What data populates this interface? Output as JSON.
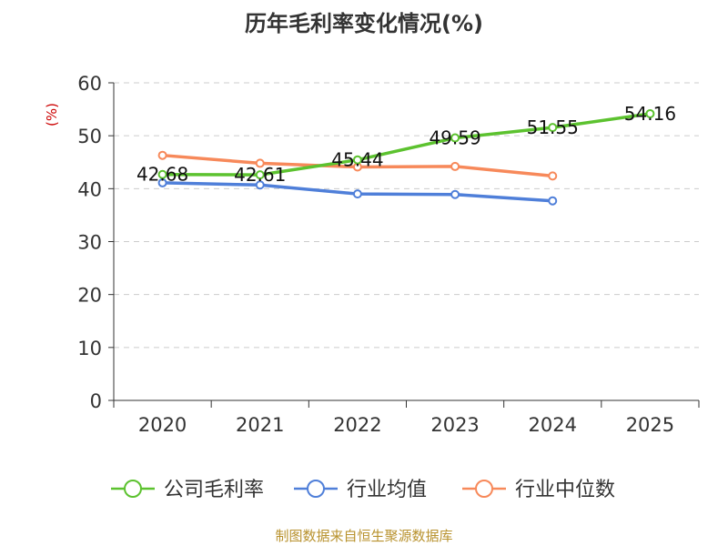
{
  "chart_data": {
    "type": "line",
    "title": "历年毛利率变化情况(%)",
    "ylabel": "(%)",
    "xlabel": "",
    "categories": [
      "2020",
      "2021",
      "2022",
      "2023",
      "2024",
      "2025"
    ],
    "ylim": [
      0,
      60
    ],
    "yticks": [
      0,
      10,
      20,
      30,
      40,
      50,
      60
    ],
    "grid": true,
    "legend_position": "bottom",
    "series": [
      {
        "name": "公司毛利率",
        "color": "#5cc22f",
        "values": [
          42.68,
          42.61,
          45.44,
          49.59,
          51.55,
          54.16
        ],
        "labels": [
          "42.68",
          "42.61",
          "45.44",
          "49.59",
          "51.55",
          "54.16"
        ]
      },
      {
        "name": "行业均值",
        "color": "#4f7fd9",
        "values": [
          41.1,
          40.7,
          39.0,
          38.9,
          37.7,
          null
        ]
      },
      {
        "name": "行业中位数",
        "color": "#f7895a",
        "values": [
          46.3,
          44.8,
          44.1,
          44.2,
          42.4,
          null
        ]
      }
    ]
  },
  "footer": "制图数据来自恒生聚源数据库",
  "colors": {
    "axis": "#333333",
    "grid": "#cccccc",
    "ylabel": "#cc0000",
    "footer": "#b8922e"
  }
}
